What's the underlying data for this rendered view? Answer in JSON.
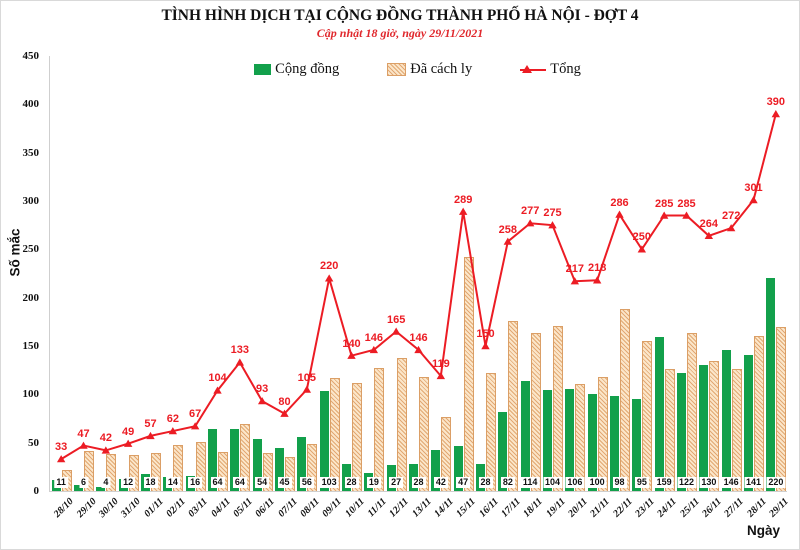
{
  "header": {
    "title": "TÌNH HÌNH DỊCH TẠI CỘNG ĐỒNG THÀNH PHỐ HÀ NỘI - ĐỢT 4",
    "subtitle": "Cập nhật 18 giờ, ngày 29/11/2021"
  },
  "colors": {
    "community_green": "#12A04B",
    "quarantine_tan_fill": "#FBE6C9",
    "quarantine_tan_hatch": "#E2A873",
    "quarantine_tan_border": "#DB9F66",
    "total_red": "#EC1C24",
    "subtitle_red": "#E0282D",
    "axis_grey": "#CFCFCF"
  },
  "chart_data": {
    "type": "combo",
    "title": "TÌNH HÌNH DỊCH TẠI CỘNG ĐỒNG THÀNH PHỐ HÀ NỘI - ĐỢT 4",
    "subtitle": "Cập nhật 18 giờ, ngày 29/11/2021",
    "xlabel": "Ngày",
    "ylabel": "Số mắc",
    "ylim": [
      0,
      450
    ],
    "yticks": [
      450,
      400,
      350,
      300,
      250,
      200,
      150,
      100,
      50,
      0
    ],
    "grid": false,
    "legend_position": "top",
    "categories": [
      "28/10",
      "29/10",
      "30/10",
      "31/10",
      "01/11",
      "02/11",
      "03/11",
      "04/11",
      "05/11",
      "06/11",
      "07/11",
      "08/11",
      "09/11",
      "10/11",
      "11/11",
      "12/11",
      "13/11",
      "14/11",
      "15/11",
      "16/11",
      "17/11",
      "18/11",
      "19/11",
      "20/11",
      "21/11",
      "22/11",
      "23/11",
      "24/11",
      "25/11",
      "26/11",
      "27/11",
      "28/11",
      "29/11"
    ],
    "series": [
      {
        "name": "Cộng đồng",
        "type": "bar",
        "color": "#12A04B",
        "value_labels_shown": true,
        "values": [
          11,
          6,
          4,
          12,
          18,
          14,
          16,
          64,
          64,
          54,
          45,
          56,
          103,
          28,
          19,
          27,
          28,
          42,
          47,
          28,
          82,
          114,
          104,
          106,
          100,
          98,
          95,
          159,
          122,
          130,
          146,
          141,
          220
        ]
      },
      {
        "name": "Đã cách ly",
        "type": "bar",
        "style": "hatched",
        "color": "#FBE6C9",
        "value_labels_shown": false,
        "values": [
          22,
          41,
          38,
          37,
          39,
          48,
          51,
          40,
          69,
          39,
          35,
          49,
          117,
          112,
          127,
          138,
          118,
          77,
          242,
          122,
          176,
          163,
          171,
          111,
          118,
          188,
          155,
          126,
          163,
          134,
          126,
          160,
          170
        ]
      },
      {
        "name": "Tổng",
        "type": "line",
        "color": "#EC1C24",
        "marker": "triangle-up",
        "value_labels_shown": true,
        "values": [
          33,
          47,
          42,
          49,
          57,
          62,
          67,
          104,
          133,
          93,
          80,
          105,
          220,
          140,
          146,
          165,
          146,
          119,
          289,
          150,
          258,
          277,
          275,
          217,
          218,
          286,
          250,
          285,
          285,
          264,
          272,
          301,
          390
        ]
      }
    ]
  }
}
